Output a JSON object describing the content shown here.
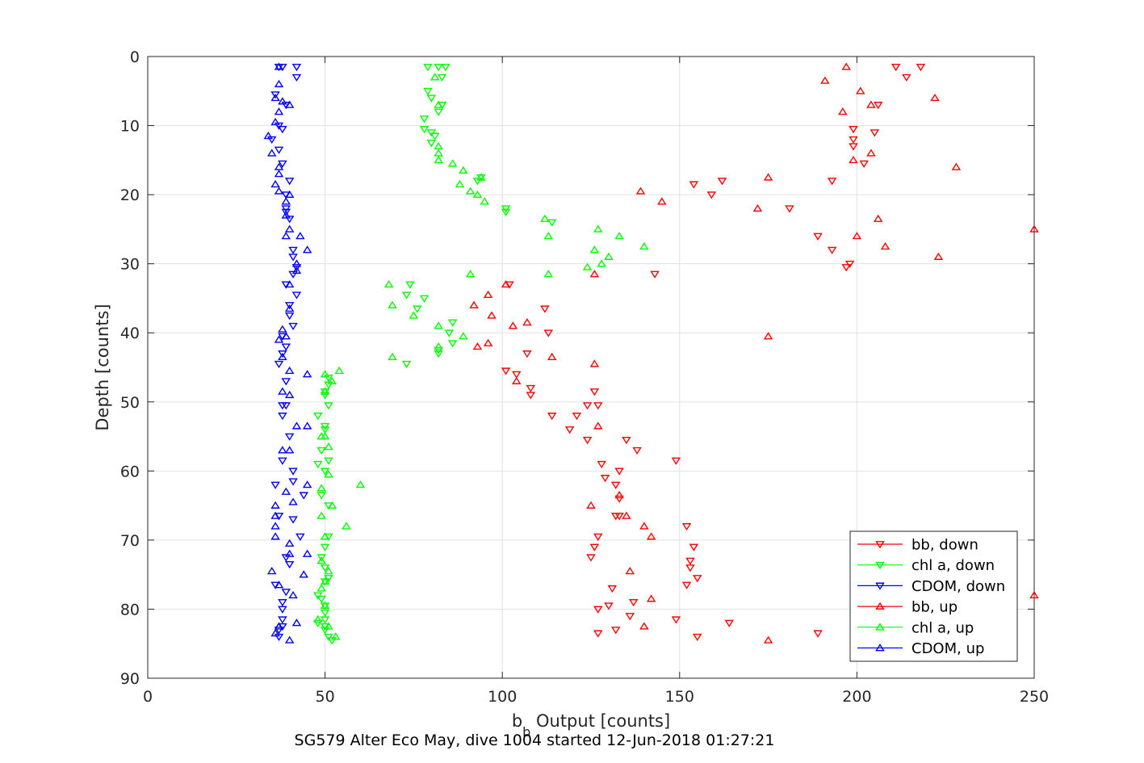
{
  "chart_data": {
    "type": "scatter",
    "title": "",
    "xlabel_main": "b",
    "xlabel_sub": "b",
    "xlabel_rest": " Output [counts]",
    "ylabel": "Depth [counts]",
    "caption": "SG579 Alter Eco May, dive 1004 started 12-Jun-2018 01:27:21",
    "xlim": [
      0,
      250
    ],
    "ylim": [
      0,
      90
    ],
    "y_reversed": true,
    "xticks": [
      0,
      50,
      100,
      150,
      200,
      250
    ],
    "yticks": [
      0,
      10,
      20,
      30,
      40,
      50,
      60,
      70,
      80,
      90
    ],
    "grid": true,
    "legend_position": "bottom-right",
    "series": [
      {
        "name": "bb, down",
        "color": "#ff0000",
        "marker": "triangle-down",
        "points": [
          [
            218,
            1.5
          ],
          [
            211,
            1.5
          ],
          [
            214,
            3
          ],
          [
            206,
            7
          ],
          [
            205,
            11
          ],
          [
            199,
            10.5
          ],
          [
            199,
            12
          ],
          [
            199,
            13
          ],
          [
            202,
            15.5
          ],
          [
            193,
            18
          ],
          [
            162,
            18
          ],
          [
            154,
            18.5
          ],
          [
            159,
            20
          ],
          [
            181,
            22
          ],
          [
            189,
            26
          ],
          [
            193,
            28
          ],
          [
            198,
            30
          ],
          [
            197,
            30.5
          ],
          [
            143,
            31.5
          ],
          [
            102,
            33
          ],
          [
            112,
            36.5
          ],
          [
            113,
            40
          ],
          [
            107,
            43
          ],
          [
            101,
            45.5
          ],
          [
            104,
            46
          ],
          [
            108,
            48
          ],
          [
            108,
            49
          ],
          [
            127,
            50.5
          ],
          [
            124,
            50.5
          ],
          [
            126,
            48.5
          ],
          [
            121,
            52
          ],
          [
            114,
            52
          ],
          [
            119,
            54
          ],
          [
            124,
            55.5
          ],
          [
            138,
            57
          ],
          [
            135,
            55.5
          ],
          [
            149,
            58.5
          ],
          [
            128,
            59
          ],
          [
            129,
            61
          ],
          [
            132,
            62
          ],
          [
            133,
            60
          ],
          [
            133,
            64
          ],
          [
            132,
            66.5
          ],
          [
            133,
            66.5
          ],
          [
            127,
            69.5
          ],
          [
            126,
            71
          ],
          [
            125,
            72.5
          ],
          [
            152,
            68
          ],
          [
            154,
            71
          ],
          [
            153,
            73
          ],
          [
            153,
            74
          ],
          [
            155,
            75.5
          ],
          [
            152,
            76.5
          ],
          [
            131,
            77
          ],
          [
            130,
            79.5
          ],
          [
            127,
            80
          ],
          [
            137,
            79
          ],
          [
            136,
            81
          ],
          [
            149,
            81.5
          ],
          [
            164,
            82
          ],
          [
            189,
            83.5
          ],
          [
            155,
            84
          ],
          [
            127,
            83.5
          ],
          [
            132,
            83
          ]
        ]
      },
      {
        "name": "chl a, down",
        "color": "#00ff00",
        "marker": "triangle-down",
        "points": [
          [
            82,
            1.5
          ],
          [
            84,
            1.5
          ],
          [
            79,
            1.5
          ],
          [
            83,
            3
          ],
          [
            79,
            5
          ],
          [
            80,
            6
          ],
          [
            83,
            7
          ],
          [
            82,
            8
          ],
          [
            78,
            9
          ],
          [
            78,
            10.5
          ],
          [
            80,
            11
          ],
          [
            81,
            11.5
          ],
          [
            80,
            12.5
          ],
          [
            93,
            18
          ],
          [
            94,
            17.5
          ],
          [
            101,
            22
          ],
          [
            101,
            22.5
          ],
          [
            114,
            24
          ],
          [
            74,
            33
          ],
          [
            73,
            34.5
          ],
          [
            78,
            35
          ],
          [
            76,
            36.5
          ],
          [
            86,
            38.5
          ],
          [
            85,
            40
          ],
          [
            86,
            41.5
          ],
          [
            82,
            42.5
          ],
          [
            82,
            43
          ],
          [
            73,
            44.5
          ],
          [
            51,
            46.5
          ],
          [
            51,
            47.5
          ],
          [
            50,
            48.5
          ],
          [
            50,
            49
          ],
          [
            51,
            50.5
          ],
          [
            48,
            52
          ],
          [
            50,
            53.5
          ],
          [
            50,
            54
          ],
          [
            49,
            57
          ],
          [
            51,
            58.5
          ],
          [
            48,
            59
          ],
          [
            50,
            60
          ],
          [
            49,
            63.5
          ],
          [
            51,
            65
          ],
          [
            51,
            69.5
          ],
          [
            50,
            71
          ],
          [
            49,
            72.5
          ],
          [
            50,
            74
          ],
          [
            50,
            76
          ],
          [
            51,
            75.5
          ],
          [
            48,
            78
          ],
          [
            49,
            78.5
          ],
          [
            50,
            79.5
          ],
          [
            50,
            80.5
          ],
          [
            50,
            81.5
          ],
          [
            48,
            82
          ],
          [
            50,
            82.5
          ],
          [
            50,
            83
          ],
          [
            51,
            84
          ],
          [
            52,
            84.5
          ]
        ]
      },
      {
        "name": "CDOM, down",
        "color": "#0000ff",
        "marker": "triangle-down",
        "points": [
          [
            37,
            1.5
          ],
          [
            38,
            1.5
          ],
          [
            42,
            1.5
          ],
          [
            42,
            3
          ],
          [
            36,
            5.5
          ],
          [
            39,
            7
          ],
          [
            37,
            10
          ],
          [
            38,
            10.5
          ],
          [
            35,
            12
          ],
          [
            37,
            13.5
          ],
          [
            38,
            15.5
          ],
          [
            40,
            18
          ],
          [
            39,
            20
          ],
          [
            39,
            22
          ],
          [
            39,
            22.5
          ],
          [
            40,
            23.5
          ],
          [
            41,
            28
          ],
          [
            41,
            29
          ],
          [
            42,
            30.5
          ],
          [
            41,
            31.5
          ],
          [
            39,
            33
          ],
          [
            42,
            34.5
          ],
          [
            40,
            36
          ],
          [
            40,
            37.5
          ],
          [
            41,
            39
          ],
          [
            38,
            40.5
          ],
          [
            39,
            42
          ],
          [
            38,
            43
          ],
          [
            37,
            44.5
          ],
          [
            39,
            47
          ],
          [
            38,
            50.5
          ],
          [
            39,
            50.5
          ],
          [
            38,
            52
          ],
          [
            40,
            55
          ],
          [
            38,
            58.5
          ],
          [
            41,
            60
          ],
          [
            41,
            61.5
          ],
          [
            36,
            62
          ],
          [
            44,
            63.5
          ],
          [
            37,
            66.5
          ],
          [
            41,
            67
          ],
          [
            43,
            69.5
          ],
          [
            39,
            72.5
          ],
          [
            40,
            73.5
          ],
          [
            36,
            76.5
          ],
          [
            39,
            77.5
          ],
          [
            38,
            79
          ],
          [
            38,
            80
          ],
          [
            38,
            81.5
          ],
          [
            38,
            82.5
          ],
          [
            37,
            83
          ],
          [
            37,
            84
          ]
        ]
      },
      {
        "name": "bb, up",
        "color": "#ff0000",
        "marker": "triangle-up",
        "points": [
          [
            197,
            1.5
          ],
          [
            191,
            3.5
          ],
          [
            201,
            5
          ],
          [
            222,
            6
          ],
          [
            204,
            7
          ],
          [
            196,
            8
          ],
          [
            204,
            14
          ],
          [
            199,
            15
          ],
          [
            228,
            16
          ],
          [
            175,
            17.5
          ],
          [
            139,
            19.5
          ],
          [
            145,
            21
          ],
          [
            172,
            22
          ],
          [
            206,
            23.5
          ],
          [
            250,
            25
          ],
          [
            200,
            26
          ],
          [
            208,
            27.5
          ],
          [
            223,
            29
          ],
          [
            126,
            31.5
          ],
          [
            101,
            33
          ],
          [
            96,
            34.5
          ],
          [
            92,
            36
          ],
          [
            97,
            37.5
          ],
          [
            107,
            38.5
          ],
          [
            103,
            39
          ],
          [
            96,
            41.5
          ],
          [
            93,
            42
          ],
          [
            114,
            43.5
          ],
          [
            175,
            40.5
          ],
          [
            126,
            44.5
          ],
          [
            104,
            47
          ],
          [
            127,
            53.5
          ],
          [
            133,
            63.5
          ],
          [
            125,
            65
          ],
          [
            135,
            66.5
          ],
          [
            140,
            68
          ],
          [
            142,
            69.5
          ],
          [
            136,
            74.5
          ],
          [
            142,
            78.5
          ],
          [
            250,
            78
          ],
          [
            140,
            82.5
          ],
          [
            175,
            84.5
          ]
        ]
      },
      {
        "name": "chl a, up",
        "color": "#00ff00",
        "marker": "triangle-up",
        "points": [
          [
            81,
            3
          ],
          [
            82,
            7
          ],
          [
            82,
            13
          ],
          [
            82,
            14
          ],
          [
            82,
            15
          ],
          [
            86,
            15.5
          ],
          [
            89,
            16.5
          ],
          [
            94,
            17.5
          ],
          [
            88,
            18.5
          ],
          [
            91,
            19.5
          ],
          [
            93,
            20
          ],
          [
            95,
            21
          ],
          [
            112,
            23.5
          ],
          [
            113,
            26
          ],
          [
            127,
            25
          ],
          [
            133,
            26
          ],
          [
            126,
            28
          ],
          [
            130,
            29
          ],
          [
            128,
            30
          ],
          [
            124,
            30.5
          ],
          [
            140,
            27.5
          ],
          [
            113,
            31.5
          ],
          [
            91,
            31.5
          ],
          [
            68,
            33
          ],
          [
            69,
            36
          ],
          [
            75,
            37.5
          ],
          [
            82,
            39
          ],
          [
            89,
            40.5
          ],
          [
            82,
            42
          ],
          [
            69,
            43.5
          ],
          [
            54,
            45.5
          ],
          [
            50,
            46
          ],
          [
            52,
            47
          ],
          [
            50,
            48.5
          ],
          [
            49,
            55
          ],
          [
            50,
            55
          ],
          [
            51,
            56.5
          ],
          [
            51,
            60.5
          ],
          [
            60,
            62
          ],
          [
            49,
            62.5
          ],
          [
            52,
            65
          ],
          [
            56,
            68
          ],
          [
            49,
            66.5
          ],
          [
            50,
            69.5
          ],
          [
            49,
            73
          ],
          [
            51,
            74.5
          ],
          [
            50,
            76
          ],
          [
            49,
            77
          ],
          [
            50,
            79.5
          ],
          [
            48,
            81.5
          ],
          [
            51,
            82.5
          ],
          [
            53,
            84
          ]
        ]
      },
      {
        "name": "CDOM, up",
        "color": "#0000ff",
        "marker": "triangle-up",
        "points": [
          [
            37,
            1.5
          ],
          [
            37,
            4
          ],
          [
            36,
            6
          ],
          [
            38,
            6.5
          ],
          [
            40,
            7
          ],
          [
            37,
            8
          ],
          [
            36,
            9.5
          ],
          [
            34,
            11.5
          ],
          [
            35,
            14
          ],
          [
            37,
            16
          ],
          [
            37,
            17
          ],
          [
            36,
            18.5
          ],
          [
            37,
            19.5
          ],
          [
            40,
            20
          ],
          [
            39,
            21
          ],
          [
            39,
            23
          ],
          [
            40,
            25
          ],
          [
            39,
            26
          ],
          [
            43,
            26
          ],
          [
            45,
            28
          ],
          [
            42,
            30
          ],
          [
            42,
            31
          ],
          [
            40,
            33
          ],
          [
            40,
            36.5
          ],
          [
            38,
            39.5
          ],
          [
            39,
            40.5
          ],
          [
            37,
            41
          ],
          [
            38,
            43.5
          ],
          [
            40,
            45.5
          ],
          [
            45,
            46
          ],
          [
            38,
            48.5
          ],
          [
            40,
            49
          ],
          [
            42,
            53.5
          ],
          [
            45,
            53.5
          ],
          [
            38,
            57
          ],
          [
            40,
            57
          ],
          [
            45,
            62
          ],
          [
            39,
            63
          ],
          [
            41,
            64.5
          ],
          [
            36,
            65
          ],
          [
            36,
            66.5
          ],
          [
            36,
            68
          ],
          [
            36,
            69.5
          ],
          [
            40,
            70.5
          ],
          [
            40,
            72
          ],
          [
            45,
            72
          ],
          [
            35,
            74.5
          ],
          [
            44,
            75
          ],
          [
            37,
            76.5
          ],
          [
            41,
            78
          ],
          [
            42,
            82
          ],
          [
            37,
            82.5
          ],
          [
            36,
            83.5
          ],
          [
            40,
            84.5
          ]
        ]
      }
    ]
  }
}
